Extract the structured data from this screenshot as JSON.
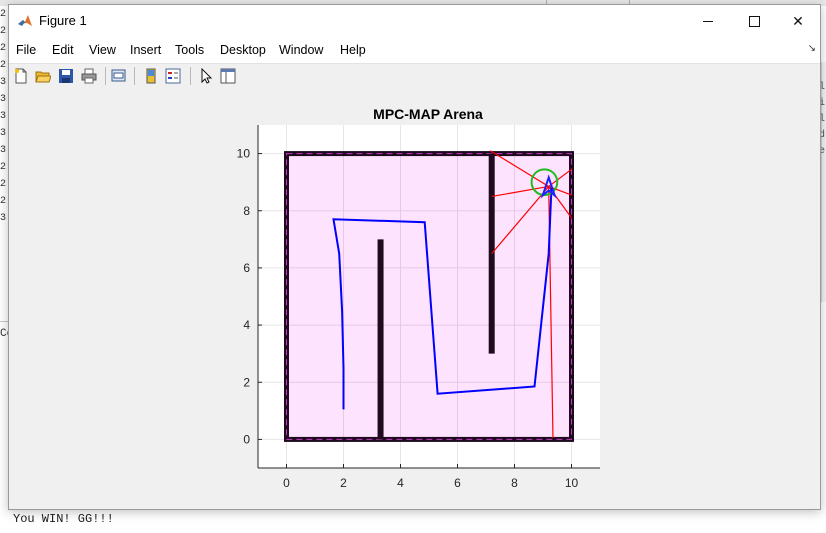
{
  "console": {
    "gutter_chars": [
      "2",
      "2",
      "2",
      "2",
      "3",
      "3",
      "3",
      "3",
      "3",
      "2",
      "2",
      "2",
      "3"
    ],
    "left_char": "Co",
    "right_glyphs": "l\ni\nl\nd\ne",
    "output_line": "You WIN! GG!!!"
  },
  "window": {
    "title": "Figure 1",
    "icons": {
      "app": "matlab-logo-icon",
      "minimize": "minimize-icon",
      "maximize": "maximize-icon",
      "close": "close-icon"
    },
    "close_glyph": "✕"
  },
  "menu": {
    "items": [
      "File",
      "Edit",
      "View",
      "Insert",
      "Tools",
      "Desktop",
      "Window",
      "Help"
    ],
    "dock_glyph": "↘"
  },
  "toolbar": {
    "tools": [
      "new-figure-icon",
      "open-file-icon",
      "save-icon",
      "print-icon",
      "link-plot-icon",
      "colorbar-icon",
      "legend-icon",
      "edit-plot-arrow-icon",
      "property-inspector-icon"
    ]
  },
  "plot": {
    "title": "MPC-MAP Arena",
    "x_ticks": [
      "0",
      "2",
      "4",
      "6",
      "8",
      "10"
    ],
    "y_ticks": [
      "0",
      "2",
      "4",
      "6",
      "8",
      "10"
    ],
    "xlim": [
      -1,
      11
    ],
    "ylim": [
      -1,
      11
    ],
    "arena_fill": "#fde3fd",
    "wall_color": "#1f0a1f",
    "path_color": "#0000ff",
    "ray_color": "#ff0000",
    "goal_color": "#22bb22"
  },
  "chart_data": {
    "type": "line",
    "title": "MPC-MAP Arena",
    "xlim": [
      -1,
      11
    ],
    "ylim": [
      -1,
      11
    ],
    "grid": true,
    "arena": [
      [
        0,
        0
      ],
      [
        10,
        0
      ],
      [
        10,
        10
      ],
      [
        0,
        10
      ]
    ],
    "walls": [
      {
        "x": [
          3.3,
          3.3
        ],
        "y": [
          0,
          7
        ]
      },
      {
        "x": [
          7.2,
          7.2
        ],
        "y": [
          3,
          10
        ]
      }
    ],
    "series": [
      {
        "x": [
          2.0,
          2.0,
          1.95,
          1.85,
          1.65,
          4.85,
          5.3,
          8.7,
          9.2,
          9.3
        ],
        "y": [
          1.05,
          2.5,
          4.5,
          6.5,
          7.7,
          7.6,
          1.6,
          1.85,
          6.5,
          8.85
        ]
      }
    ],
    "rays": [
      {
        "x": [
          9.2,
          7.15
        ],
        "y": [
          8.85,
          10.1
        ]
      },
      {
        "x": [
          9.2,
          7.2
        ],
        "y": [
          8.85,
          6.5
        ]
      },
      {
        "x": [
          9.2,
          7.2
        ],
        "y": [
          8.85,
          8.5
        ]
      },
      {
        "x": [
          9.2,
          10.0
        ],
        "y": [
          8.85,
          8.55
        ]
      },
      {
        "x": [
          9.2,
          10.0
        ],
        "y": [
          8.85,
          9.45
        ]
      },
      {
        "x": [
          9.2,
          10.0
        ],
        "y": [
          8.85,
          7.75
        ]
      },
      {
        "x": [
          9.2,
          9.35
        ],
        "y": [
          8.85,
          0.05
        ]
      }
    ],
    "goal": {
      "x": 9.05,
      "y": 9.0,
      "r": 0.45
    },
    "robot": {
      "x": 9.2,
      "y": 8.85
    }
  }
}
